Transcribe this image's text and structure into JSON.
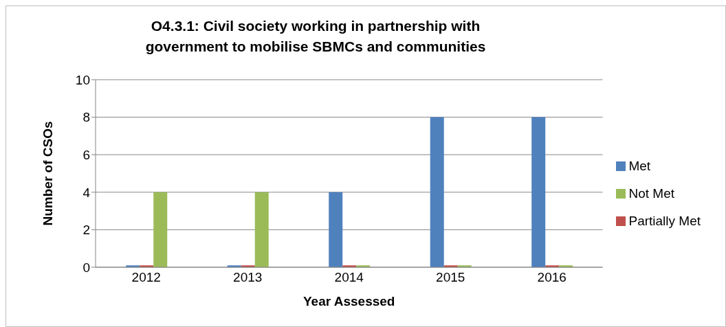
{
  "chart_data": {
    "type": "bar",
    "title": "O4.3.1:  Civil society working in partnership with government to mobilise SBMCs and communities",
    "xlabel": "Year Assessed",
    "ylabel": "Number of CSOs",
    "categories": [
      "2012",
      "2013",
      "2014",
      "2015",
      "2016"
    ],
    "series": [
      {
        "name": "Met",
        "color": "#4f81bd",
        "values": [
          0.1,
          0.1,
          4,
          8,
          8
        ]
      },
      {
        "name": "Partially Met",
        "color": "#c0504d",
        "values": [
          0.1,
          0.1,
          0.1,
          0.1,
          0.1
        ]
      },
      {
        "name": "Not Met",
        "color": "#9bbb59",
        "values": [
          4,
          4,
          0.1,
          0.1,
          0.1
        ]
      }
    ],
    "ylim": [
      0,
      10
    ],
    "yticks": [
      0,
      2,
      4,
      6,
      8,
      10
    ],
    "grid": "y",
    "legend": "right"
  }
}
